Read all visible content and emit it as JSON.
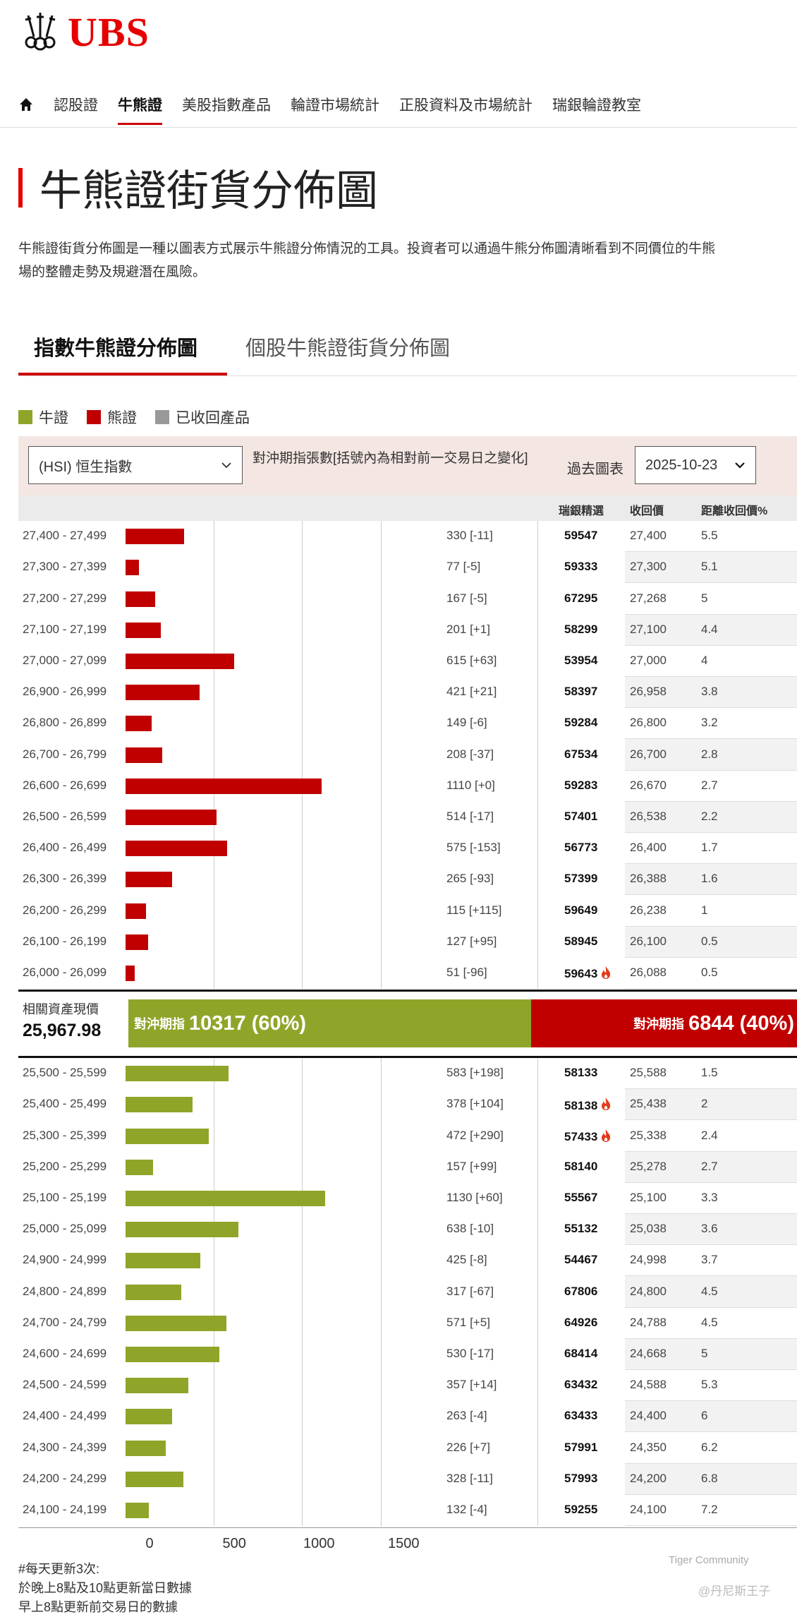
{
  "header": {
    "brand": "UBS",
    "nav": [
      "認股證",
      "牛熊證",
      "美股指數產品",
      "輪證市場統計",
      "正股資料及市場統計",
      "瑞銀輪證教室"
    ],
    "nav_active": 1
  },
  "page": {
    "title": "牛熊證街貨分佈圖",
    "intro_line1": "牛熊證街貨分佈圖是一種以圖表方式展示牛熊證分佈情況的工具。投資者可以通過牛熊分佈圖清晰看到不同價位的牛熊",
    "intro_line2": "場的整體走勢及規避潛在風險。"
  },
  "tabs": [
    "指數牛熊證分佈圖",
    "個股牛熊證街貨分佈圖"
  ],
  "legend": [
    {
      "label": "牛證",
      "color": "#8fa529"
    },
    {
      "label": "熊證",
      "color": "#c00000"
    },
    {
      "label": "已收回產品",
      "color": "#999999"
    }
  ],
  "controls": {
    "index_select": "(HSI) 恒生指數",
    "label": "對沖期指張數[括號內為相對前一交易日之變化]",
    "past_label": "過去圖表",
    "date": "2025-10-23"
  },
  "table_headers": {
    "code": "瑞銀精選",
    "call": "收回價",
    "dist": "距離收回價%"
  },
  "center": {
    "asset_label": "相關資產現價",
    "asset_value": "25,967.98",
    "bull_label": "對沖期指",
    "bull_value": "10317 (60%)",
    "bear_label": "對沖期指",
    "bear_value": "6844 (40%)"
  },
  "chart_data": {
    "type": "bar",
    "orientation": "horizontal",
    "xlim": [
      0,
      1500
    ],
    "x_ticks": [
      "0",
      "500",
      "1000",
      "1500"
    ],
    "series": [
      {
        "name": "熊證",
        "color": "#c00000",
        "rows": [
          {
            "range": "27,400 - 27,499",
            "value": 330,
            "change": "[-11]",
            "code": "59547",
            "call": "27,400",
            "dist": "5.5",
            "hot": false
          },
          {
            "range": "27,300 - 27,399",
            "value": 77,
            "change": "[-5]",
            "code": "59333",
            "call": "27,300",
            "dist": "5.1",
            "hot": false
          },
          {
            "range": "27,200 - 27,299",
            "value": 167,
            "change": "[-5]",
            "code": "67295",
            "call": "27,268",
            "dist": "5",
            "hot": false
          },
          {
            "range": "27,100 - 27,199",
            "value": 201,
            "change": "[+1]",
            "code": "58299",
            "call": "27,100",
            "dist": "4.4",
            "hot": false
          },
          {
            "range": "27,000 - 27,099",
            "value": 615,
            "change": "[+63]",
            "code": "53954",
            "call": "27,000",
            "dist": "4",
            "hot": false
          },
          {
            "range": "26,900 - 26,999",
            "value": 421,
            "change": "[+21]",
            "code": "58397",
            "call": "26,958",
            "dist": "3.8",
            "hot": false
          },
          {
            "range": "26,800 - 26,899",
            "value": 149,
            "change": "[-6]",
            "code": "59284",
            "call": "26,800",
            "dist": "3.2",
            "hot": false
          },
          {
            "range": "26,700 - 26,799",
            "value": 208,
            "change": "[-37]",
            "code": "67534",
            "call": "26,700",
            "dist": "2.8",
            "hot": false
          },
          {
            "range": "26,600 - 26,699",
            "value": 1110,
            "change": "[+0]",
            "code": "59283",
            "call": "26,670",
            "dist": "2.7",
            "hot": false
          },
          {
            "range": "26,500 - 26,599",
            "value": 514,
            "change": "[-17]",
            "code": "57401",
            "call": "26,538",
            "dist": "2.2",
            "hot": false
          },
          {
            "range": "26,400 - 26,499",
            "value": 575,
            "change": "[-153]",
            "code": "56773",
            "call": "26,400",
            "dist": "1.7",
            "hot": false
          },
          {
            "range": "26,300 - 26,399",
            "value": 265,
            "change": "[-93]",
            "code": "57399",
            "call": "26,388",
            "dist": "1.6",
            "hot": false
          },
          {
            "range": "26,200 - 26,299",
            "value": 115,
            "change": "[+115]",
            "code": "59649",
            "call": "26,238",
            "dist": "1",
            "hot": false
          },
          {
            "range": "26,100 - 26,199",
            "value": 127,
            "change": "[+95]",
            "code": "58945",
            "call": "26,100",
            "dist": "0.5",
            "hot": false
          },
          {
            "range": "26,000 - 26,099",
            "value": 51,
            "change": "[-96]",
            "code": "59643",
            "call": "26,088",
            "dist": "0.5",
            "hot": true
          }
        ]
      },
      {
        "name": "牛證",
        "color": "#8fa529",
        "rows": [
          {
            "range": "25,500 - 25,599",
            "value": 583,
            "change": "[+198]",
            "code": "58133",
            "call": "25,588",
            "dist": "1.5",
            "hot": false
          },
          {
            "range": "25,400 - 25,499",
            "value": 378,
            "change": "[+104]",
            "code": "58138",
            "call": "25,438",
            "dist": "2",
            "hot": true
          },
          {
            "range": "25,300 - 25,399",
            "value": 472,
            "change": "[+290]",
            "code": "57433",
            "call": "25,338",
            "dist": "2.4",
            "hot": true
          },
          {
            "range": "25,200 - 25,299",
            "value": 157,
            "change": "[+99]",
            "code": "58140",
            "call": "25,278",
            "dist": "2.7",
            "hot": false
          },
          {
            "range": "25,100 - 25,199",
            "value": 1130,
            "change": "[+60]",
            "code": "55567",
            "call": "25,100",
            "dist": "3.3",
            "hot": false
          },
          {
            "range": "25,000 - 25,099",
            "value": 638,
            "change": "[-10]",
            "code": "55132",
            "call": "25,038",
            "dist": "3.6",
            "hot": false
          },
          {
            "range": "24,900 - 24,999",
            "value": 425,
            "change": "[-8]",
            "code": "54467",
            "call": "24,998",
            "dist": "3.7",
            "hot": false
          },
          {
            "range": "24,800 - 24,899",
            "value": 317,
            "change": "[-67]",
            "code": "67806",
            "call": "24,800",
            "dist": "4.5",
            "hot": false
          },
          {
            "range": "24,700 - 24,799",
            "value": 571,
            "change": "[+5]",
            "code": "64926",
            "call": "24,788",
            "dist": "4.5",
            "hot": false
          },
          {
            "range": "24,600 - 24,699",
            "value": 530,
            "change": "[-17]",
            "code": "68414",
            "call": "24,668",
            "dist": "5",
            "hot": false
          },
          {
            "range": "24,500 - 24,599",
            "value": 357,
            "change": "[+14]",
            "code": "63432",
            "call": "24,588",
            "dist": "5.3",
            "hot": false
          },
          {
            "range": "24,400 - 24,499",
            "value": 263,
            "change": "[-4]",
            "code": "63433",
            "call": "24,400",
            "dist": "6",
            "hot": false
          },
          {
            "range": "24,300 - 24,399",
            "value": 226,
            "change": "[+7]",
            "code": "57991",
            "call": "24,350",
            "dist": "6.2",
            "hot": false
          },
          {
            "range": "24,200 - 24,299",
            "value": 328,
            "change": "[-11]",
            "code": "57993",
            "call": "24,200",
            "dist": "6.8",
            "hot": false
          },
          {
            "range": "24,100 - 24,199",
            "value": 132,
            "change": "[-4]",
            "code": "59255",
            "call": "24,100",
            "dist": "7.2",
            "hot": false
          }
        ]
      }
    ]
  },
  "notes": [
    "#每天更新3次:",
    "於晚上8點及10點更新當日數據",
    "早上8點更新前交易日的數據"
  ],
  "watermark": {
    "text1": "Tiger Community",
    "text2": "@丹尼斯王子"
  }
}
